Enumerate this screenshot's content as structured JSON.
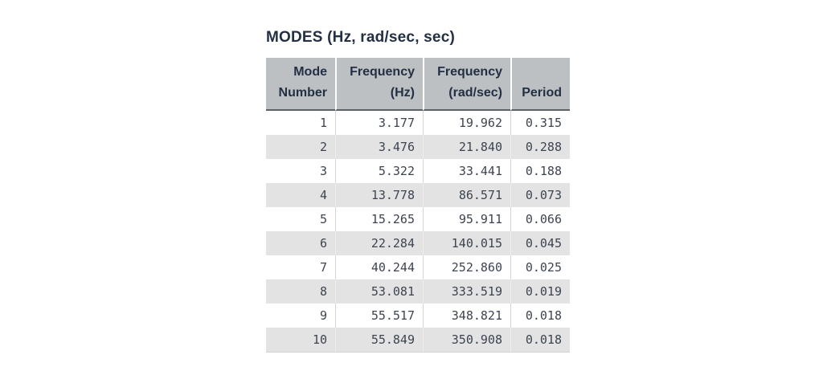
{
  "title": "MODES (Hz, rad/sec, sec)",
  "colors": {
    "header_bg": "#bcc0c2",
    "header_text": "#233044",
    "header_rule": "#5d6165",
    "row_alt_bg": "#e3e3e4",
    "body_text": "#3d4450"
  },
  "table": {
    "columns": [
      {
        "name": "mode-number",
        "lines": [
          "Mode",
          "Number"
        ]
      },
      {
        "name": "frequency-hz",
        "lines": [
          "Frequency",
          "(Hz)"
        ]
      },
      {
        "name": "frequency-rad-sec",
        "lines": [
          "Frequency",
          "(rad/sec)"
        ]
      },
      {
        "name": "period",
        "lines": [
          "Period"
        ]
      }
    ],
    "rows": [
      [
        "1",
        "3.177",
        "19.962",
        "0.315"
      ],
      [
        "2",
        "3.476",
        "21.840",
        "0.288"
      ],
      [
        "3",
        "5.322",
        "33.441",
        "0.188"
      ],
      [
        "4",
        "13.778",
        "86.571",
        "0.073"
      ],
      [
        "5",
        "15.265",
        "95.911",
        "0.066"
      ],
      [
        "6",
        "22.284",
        "140.015",
        "0.045"
      ],
      [
        "7",
        "40.244",
        "252.860",
        "0.025"
      ],
      [
        "8",
        "53.081",
        "333.519",
        "0.019"
      ],
      [
        "9",
        "55.517",
        "348.821",
        "0.018"
      ],
      [
        "10",
        "55.849",
        "350.908",
        "0.018"
      ]
    ]
  },
  "chart_data": {
    "type": "table",
    "title": "MODES (Hz, rad/sec, sec)",
    "categories": [
      "Mode Number",
      "Frequency (Hz)",
      "Frequency (rad/sec)",
      "Period"
    ],
    "series": [
      {
        "name": "Mode Number",
        "values": [
          1,
          2,
          3,
          4,
          5,
          6,
          7,
          8,
          9,
          10
        ]
      },
      {
        "name": "Frequency (Hz)",
        "values": [
          3.177,
          3.476,
          5.322,
          13.778,
          15.265,
          22.284,
          40.244,
          53.081,
          55.517,
          55.849
        ]
      },
      {
        "name": "Frequency (rad/sec)",
        "values": [
          19.962,
          21.84,
          33.441,
          86.571,
          95.911,
          140.015,
          252.86,
          333.519,
          348.821,
          350.908
        ]
      },
      {
        "name": "Period",
        "values": [
          0.315,
          0.288,
          0.188,
          0.073,
          0.066,
          0.045,
          0.025,
          0.019,
          0.018,
          0.018
        ]
      }
    ]
  }
}
